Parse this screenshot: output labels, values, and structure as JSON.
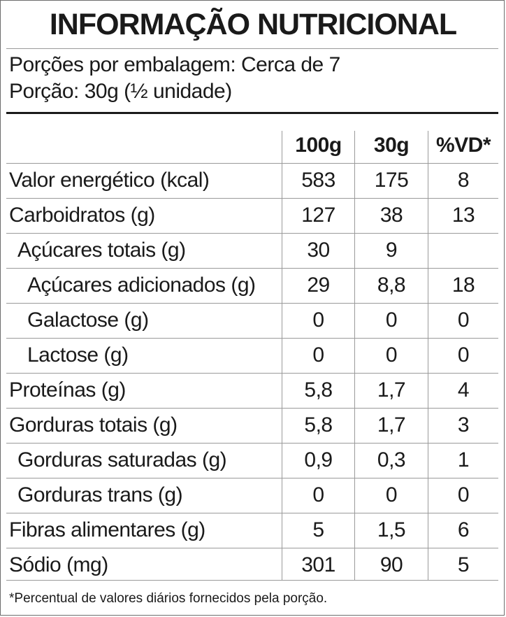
{
  "title": "INFORMAÇÃO NUTRICIONAL",
  "servings_per_package": "Porções por embalagem: Cerca de 7",
  "serving_size": "Porção: 30g (½ unidade)",
  "table": {
    "columns": [
      "100g",
      "30g",
      "%VD*"
    ],
    "rows": [
      {
        "label": "Valor energético (kcal)",
        "indent": 0,
        "v100": "583",
        "v30": "175",
        "vd": "8"
      },
      {
        "label": "Carboidratos (g)",
        "indent": 0,
        "v100": "127",
        "v30": "38",
        "vd": "13"
      },
      {
        "label": "Açúcares totais (g)",
        "indent": 1,
        "v100": "30",
        "v30": "9",
        "vd": ""
      },
      {
        "label": "Açúcares adicionados (g)",
        "indent": 2,
        "v100": "29",
        "v30": "8,8",
        "vd": "18"
      },
      {
        "label": "Galactose (g)",
        "indent": 2,
        "v100": "0",
        "v30": "0",
        "vd": "0"
      },
      {
        "label": "Lactose (g)",
        "indent": 2,
        "v100": "0",
        "v30": "0",
        "vd": "0"
      },
      {
        "label": "Proteínas (g)",
        "indent": 0,
        "v100": "5,8",
        "v30": "1,7",
        "vd": "4"
      },
      {
        "label": "Gorduras totais (g)",
        "indent": 0,
        "v100": "5,8",
        "v30": "1,7",
        "vd": "3"
      },
      {
        "label": "Gorduras saturadas (g)",
        "indent": 1,
        "v100": "0,9",
        "v30": "0,3",
        "vd": "1"
      },
      {
        "label": "Gorduras trans (g)",
        "indent": 1,
        "v100": "0",
        "v30": "0",
        "vd": "0"
      },
      {
        "label": "Fibras alimentares (g)",
        "indent": 0,
        "v100": "5",
        "v30": "1,5",
        "vd": "6"
      },
      {
        "label": "Sódio (mg)",
        "indent": 0,
        "v100": "301",
        "v30": "90",
        "vd": "5"
      }
    ]
  },
  "footnote": "*Percentual de valores diários fornecidos pela porção."
}
